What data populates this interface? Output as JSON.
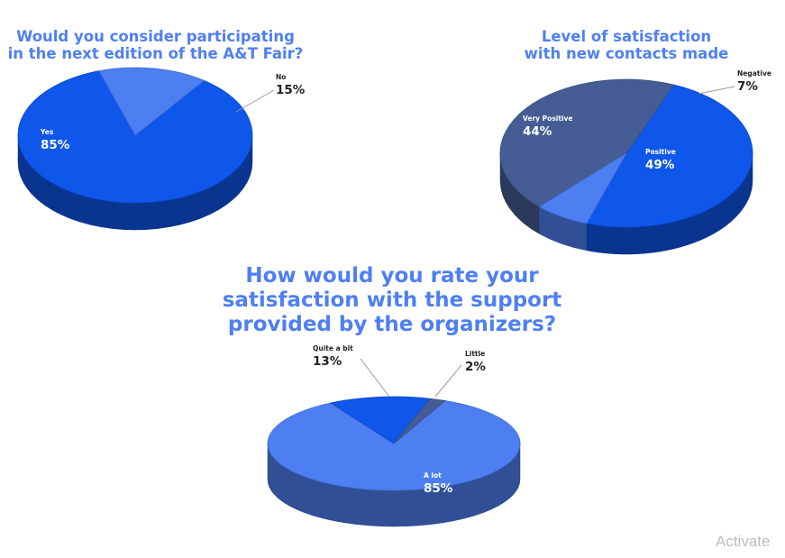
{
  "chart_data": [
    {
      "type": "pie",
      "title_lines": [
        "Would you consider participating",
        "in the next edition of the A&T Fair?"
      ],
      "slices": [
        {
          "label": "Yes",
          "value": 85,
          "display": "85%"
        },
        {
          "label": "No",
          "value": 15,
          "display": "15%"
        }
      ],
      "colors": [
        "#0f56ea",
        "#4d7ff2"
      ],
      "legend": "none"
    },
    {
      "type": "pie",
      "title_lines": [
        "Level of satisfaction",
        "with new contacts made"
      ],
      "slices": [
        {
          "label": "Positive",
          "value": 49,
          "display": "49%"
        },
        {
          "label": "Very Positive",
          "value": 44,
          "display": "44%"
        },
        {
          "label": "Negative",
          "value": 7,
          "display": "7%"
        }
      ],
      "colors": [
        "#0f56ea",
        "#455d94",
        "#4d7ff2"
      ],
      "legend": "none"
    },
    {
      "type": "pie",
      "title_lines": [
        "How would you rate your",
        "satisfaction with the support",
        "provided by the organizers?"
      ],
      "slices": [
        {
          "label": "A lot",
          "value": 85,
          "display": "85%"
        },
        {
          "label": "Quite a bit",
          "value": 13,
          "display": "13%"
        },
        {
          "label": "Little",
          "value": 2,
          "display": "2%"
        }
      ],
      "colors": [
        "#4d7ff2",
        "#0f56ea",
        "#455d94"
      ],
      "legend": "none"
    }
  ],
  "watermark": "Activate"
}
